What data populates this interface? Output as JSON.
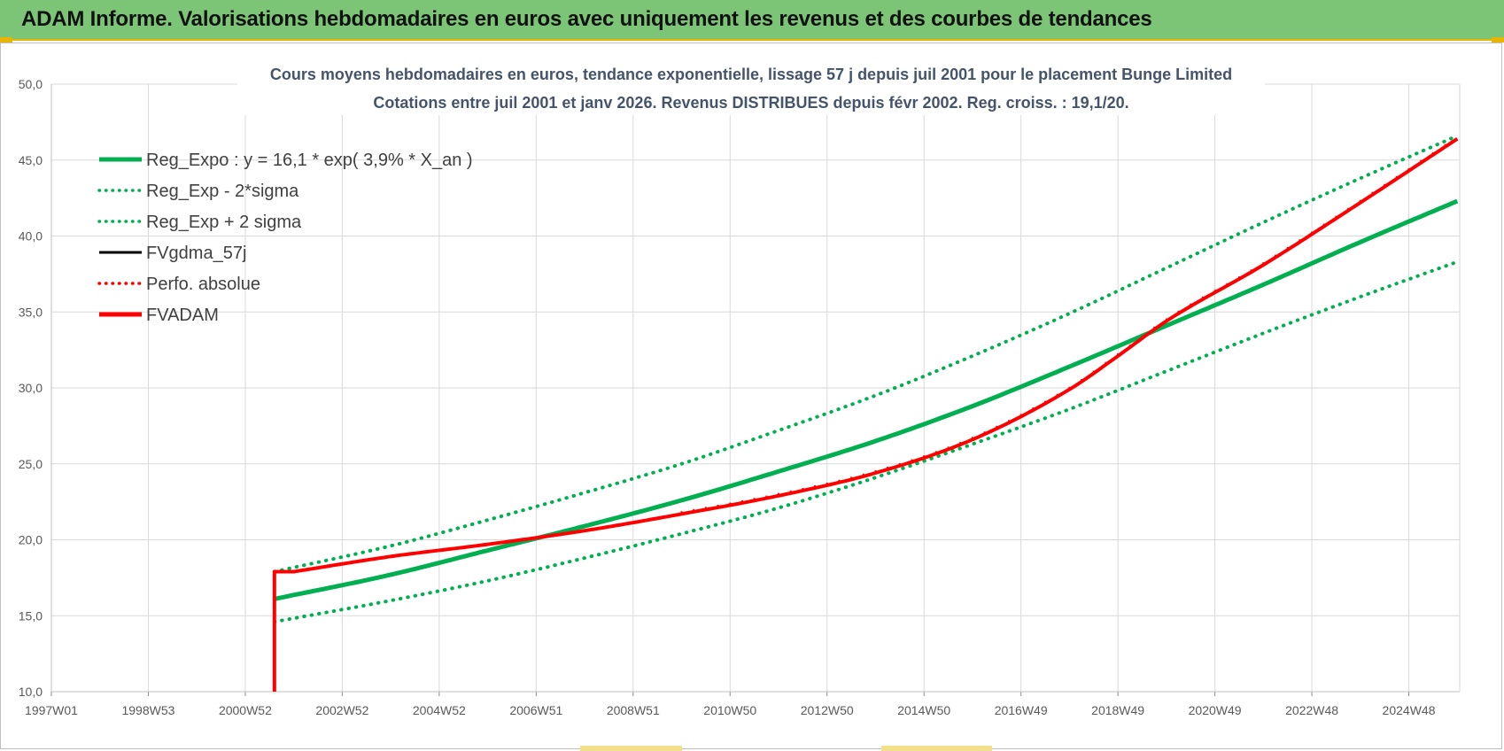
{
  "header": {
    "title": "ADAM Informe. Valorisations hebdomadaires en euros avec uniquement les revenus et des courbes de tendances"
  },
  "colors": {
    "banner": "#7cc576",
    "green_series": "#00b050",
    "red_series": "#ff0000",
    "black_series": "#000000",
    "title_text": "#44546a",
    "grid": "#d9d9d9"
  },
  "chart_data": {
    "type": "line",
    "title": "Cours moyens hebdomadaires en euros, tendance exponentielle, lissage 57 j depuis juil 2001 pour le placement Bunge Limited",
    "subtitle": "Cotations entre juil 2001 et janv 2026. Revenus DISTRIBUES depuis févr 2002. Reg. croiss. : 19,1/20.",
    "xlabel": "",
    "ylabel": "",
    "x_ticks": [
      "1997W01",
      "1998W53",
      "2000W52",
      "2002W52",
      "2004W52",
      "2006W51",
      "2008W51",
      "2010W50",
      "2012W50",
      "2014W50",
      "2016W49",
      "2018W49",
      "2020W49",
      "2022W48",
      "2024W48"
    ],
    "x_tick_years": [
      1997.0,
      1999.0,
      2001.0,
      2003.0,
      2005.0,
      2007.0,
      2009.0,
      2011.0,
      2013.0,
      2015.0,
      2017.0,
      2019.0,
      2021.0,
      2023.0,
      2025.0
    ],
    "xlim": [
      1997.0,
      2026.05
    ],
    "ylim": [
      10,
      50
    ],
    "y_ticks": [
      10,
      15,
      20,
      25,
      30,
      35,
      40,
      45,
      50
    ],
    "y_tick_labels": [
      "10,0",
      "15,0",
      "20,0",
      "25,0",
      "30,0",
      "35,0",
      "40,0",
      "45,0",
      "50,0"
    ],
    "grid": true,
    "legend_position": "top-left",
    "legend": [
      {
        "label": "Reg_Expo : y = 16,1 * exp( 3,9% *  X_an )",
        "color": "#00b050",
        "style": "solid"
      },
      {
        "label": "Reg_Exp - 2*sigma",
        "color": "#00b050",
        "style": "dotted"
      },
      {
        "label": "Reg_Exp + 2 sigma",
        "color": "#00b050",
        "style": "dotted"
      },
      {
        "label": "FVgdma_57j",
        "color": "#000000",
        "style": "solid"
      },
      {
        "label": "Perfo. absolue",
        "color": "#ff0000",
        "style": "dotted"
      },
      {
        "label": "FVADAM",
        "color": "#ff0000",
        "style": "solid"
      }
    ],
    "series": [
      {
        "name": "Reg_Expo : y = 16,1 * exp( 3,9% *  X_an )",
        "x": [
          2001.6,
          2004.0,
          2006.0,
          2008.0,
          2010.0,
          2012.0,
          2014.0,
          2016.0,
          2018.0,
          2020.0,
          2022.0,
          2024.0,
          2026.0
        ],
        "values": [
          16.1,
          17.7,
          19.3,
          20.9,
          22.6,
          24.5,
          26.5,
          28.8,
          31.4,
          34.1,
          36.8,
          39.6,
          42.3
        ]
      },
      {
        "name": "Reg_Exp - 2*sigma",
        "x": [
          2001.6,
          2004.0,
          2006.0,
          2008.0,
          2010.0,
          2012.0,
          2014.0,
          2016.0,
          2018.0,
          2020.0,
          2022.0,
          2024.0,
          2026.0
        ],
        "values": [
          14.6,
          16.0,
          17.3,
          18.8,
          20.4,
          22.1,
          24.1,
          26.3,
          28.6,
          31.1,
          33.6,
          36.0,
          38.3
        ]
      },
      {
        "name": "Reg_Exp + 2 sigma",
        "x": [
          2001.6,
          2004.0,
          2006.0,
          2008.0,
          2010.0,
          2012.0,
          2014.0,
          2016.0,
          2018.0,
          2020.0,
          2022.0,
          2024.0,
          2026.0
        ],
        "values": [
          17.9,
          19.6,
          21.3,
          23.1,
          25.0,
          27.2,
          29.5,
          32.1,
          34.9,
          37.9,
          40.9,
          43.8,
          46.6
        ]
      },
      {
        "name": "FVADAM",
        "x": [
          2001.6,
          2001.6,
          2002.0,
          2004.0,
          2006.0,
          2008.0,
          2010.0,
          2012.0,
          2014.0,
          2016.0,
          2018.0,
          2019.0,
          2020.0,
          2022.0,
          2024.0,
          2026.0
        ],
        "values": [
          10.0,
          17.9,
          17.9,
          18.9,
          19.7,
          20.6,
          21.7,
          22.9,
          24.4,
          26.6,
          29.9,
          32.1,
          34.4,
          38.1,
          42.2,
          46.4
        ]
      }
    ]
  }
}
